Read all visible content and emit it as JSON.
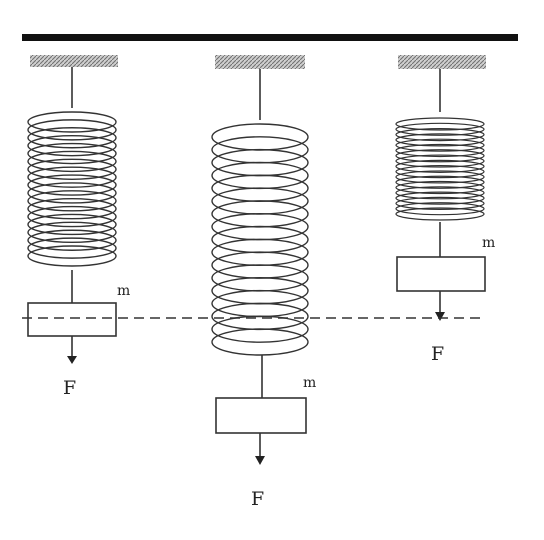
{
  "colors": {
    "line": "#333333",
    "hatch": "#8a8a8a",
    "dashed_line": "#333333",
    "background": "#ffffff"
  },
  "springs": [
    {
      "mass_label": "m",
      "force_label": "F"
    },
    {
      "mass_label": "m",
      "force_label": "F"
    },
    {
      "mass_label": "m",
      "force_label": "F"
    }
  ]
}
